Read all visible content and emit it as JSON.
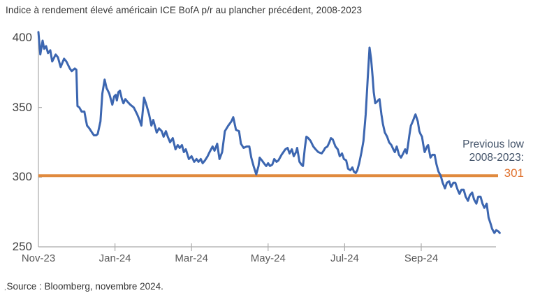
{
  "title": "Indice à rendement élevé américain ICE BofA p/r au plancher précédent, 2008-2023",
  "source": "Source : Bloomberg, novembre 2024.",
  "source_leading_mark": ",",
  "annotation": {
    "line1": "Previous low",
    "line2": "2008-2023:",
    "value": "301"
  },
  "colors": {
    "data_line": "#3C66B0",
    "threshold_line": "#E08A3E",
    "threshold_value_text": "#E0712D",
    "annotation_text": "#44546A",
    "axis": "#ABABAB",
    "y_tick_text": "#3F3F3F",
    "x_tick_text": "#595959"
  },
  "chart_data": {
    "type": "line",
    "title": "Indice à rendement élevé américain ICE BofA p/r au plancher précédent, 2008-2023",
    "xlabel": "",
    "ylabel": "",
    "x_unit": "months since Nov-2023",
    "ylim": [
      250,
      405
    ],
    "y_ticks": [
      400,
      350,
      300,
      250
    ],
    "x_tick_labels": [
      "Nov-23",
      "Jan-24",
      "Mar-24",
      "May-24",
      "Jul-24",
      "Sep-24"
    ],
    "x_tick_positions_months": [
      0,
      2,
      4,
      6,
      8,
      10
    ],
    "grid": false,
    "legend": "none",
    "threshold": {
      "value": 301,
      "label": "Previous low 2008-2023: 301"
    },
    "series": [
      {
        "name": "Indice à rendement élevé américain ICE BofA p/r au plancher précédent",
        "points": [
          [
            0,
            404
          ],
          [
            0.05,
            388
          ],
          [
            0.11,
            398
          ],
          [
            0.15,
            392
          ],
          [
            0.2,
            394
          ],
          [
            0.25,
            389
          ],
          [
            0.31,
            391
          ],
          [
            0.36,
            383
          ],
          [
            0.45,
            388
          ],
          [
            0.51,
            386
          ],
          [
            0.58,
            379
          ],
          [
            0.67,
            385
          ],
          [
            0.73,
            383
          ],
          [
            0.82,
            378
          ],
          [
            0.87,
            376
          ],
          [
            0.95,
            378
          ],
          [
            0.99,
            377
          ],
          [
            1.02,
            351
          ],
          [
            1.07,
            350
          ],
          [
            1.13,
            347
          ],
          [
            1.2,
            347
          ],
          [
            1.24,
            341
          ],
          [
            1.27,
            337
          ],
          [
            1.33,
            335
          ],
          [
            1.4,
            332
          ],
          [
            1.45,
            330
          ],
          [
            1.51,
            330
          ],
          [
            1.55,
            331
          ],
          [
            1.62,
            340
          ],
          [
            1.67,
            360
          ],
          [
            1.73,
            370
          ],
          [
            1.78,
            364
          ],
          [
            1.85,
            360
          ],
          [
            1.89,
            356
          ],
          [
            1.93,
            352
          ],
          [
            1.98,
            358
          ],
          [
            2.02,
            359
          ],
          [
            2.05,
            355
          ],
          [
            2.09,
            361
          ],
          [
            2.13,
            362
          ],
          [
            2.18,
            356
          ],
          [
            2.22,
            353
          ],
          [
            2.27,
            356
          ],
          [
            2.33,
            354
          ],
          [
            2.4,
            352
          ],
          [
            2.49,
            350
          ],
          [
            2.58,
            345
          ],
          [
            2.64,
            341
          ],
          [
            2.69,
            337
          ],
          [
            2.76,
            357
          ],
          [
            2.82,
            352
          ],
          [
            2.89,
            345
          ],
          [
            2.95,
            337
          ],
          [
            3.0,
            341
          ],
          [
            3.09,
            332
          ],
          [
            3.15,
            335
          ],
          [
            3.22,
            333
          ],
          [
            3.27,
            329
          ],
          [
            3.33,
            333
          ],
          [
            3.38,
            329
          ],
          [
            3.44,
            325
          ],
          [
            3.51,
            328
          ],
          [
            3.58,
            320
          ],
          [
            3.64,
            323
          ],
          [
            3.69,
            321
          ],
          [
            3.75,
            323
          ],
          [
            3.8,
            318
          ],
          [
            3.85,
            320
          ],
          [
            3.93,
            313
          ],
          [
            4.0,
            315
          ],
          [
            4.07,
            311
          ],
          [
            4.13,
            313
          ],
          [
            4.18,
            311
          ],
          [
            4.24,
            313
          ],
          [
            4.29,
            310
          ],
          [
            4.35,
            312
          ],
          [
            4.42,
            315
          ],
          [
            4.47,
            318
          ],
          [
            4.55,
            322
          ],
          [
            4.6,
            319
          ],
          [
            4.67,
            324
          ],
          [
            4.73,
            313
          ],
          [
            4.8,
            318
          ],
          [
            4.87,
            333
          ],
          [
            4.96,
            337
          ],
          [
            5.04,
            340
          ],
          [
            5.09,
            343
          ],
          [
            5.16,
            334
          ],
          [
            5.24,
            333
          ],
          [
            5.29,
            324
          ],
          [
            5.36,
            321
          ],
          [
            5.44,
            322
          ],
          [
            5.51,
            322
          ],
          [
            5.56,
            314
          ],
          [
            5.62,
            308
          ],
          [
            5.69,
            302
          ],
          [
            5.75,
            308
          ],
          [
            5.78,
            314
          ],
          [
            5.84,
            312
          ],
          [
            5.89,
            310
          ],
          [
            5.95,
            308
          ],
          [
            6.0,
            310
          ],
          [
            6.05,
            308
          ],
          [
            6.11,
            309
          ],
          [
            6.16,
            313
          ],
          [
            6.22,
            311
          ],
          [
            6.27,
            312
          ],
          [
            6.35,
            316
          ],
          [
            6.4,
            318
          ],
          [
            6.45,
            320
          ],
          [
            6.51,
            321
          ],
          [
            6.56,
            317
          ],
          [
            6.62,
            320
          ],
          [
            6.67,
            315
          ],
          [
            6.73,
            318
          ],
          [
            6.76,
            321
          ],
          [
            6.82,
            311
          ],
          [
            6.87,
            309
          ],
          [
            6.91,
            308
          ],
          [
            6.96,
            321
          ],
          [
            7.0,
            329
          ],
          [
            7.05,
            328
          ],
          [
            7.11,
            326
          ],
          [
            7.18,
            322
          ],
          [
            7.24,
            320
          ],
          [
            7.31,
            318
          ],
          [
            7.4,
            317
          ],
          [
            7.45,
            319
          ],
          [
            7.49,
            321
          ],
          [
            7.55,
            322
          ],
          [
            7.6,
            325
          ],
          [
            7.64,
            328
          ],
          [
            7.69,
            327
          ],
          [
            7.76,
            322
          ],
          [
            7.82,
            320
          ],
          [
            7.87,
            315
          ],
          [
            7.93,
            317
          ],
          [
            7.98,
            313
          ],
          [
            8.04,
            312
          ],
          [
            8.09,
            306
          ],
          [
            8.15,
            305
          ],
          [
            8.2,
            307
          ],
          [
            8.24,
            304
          ],
          [
            8.29,
            303
          ],
          [
            8.33,
            305
          ],
          [
            8.38,
            310
          ],
          [
            8.44,
            318
          ],
          [
            8.49,
            326
          ],
          [
            8.55,
            345
          ],
          [
            8.6,
            370
          ],
          [
            8.65,
            393
          ],
          [
            8.69,
            385
          ],
          [
            8.73,
            372
          ],
          [
            8.76,
            361
          ],
          [
            8.8,
            353
          ],
          [
            8.84,
            354
          ],
          [
            8.87,
            355
          ],
          [
            8.91,
            356
          ],
          [
            8.96,
            345
          ],
          [
            9.0,
            338
          ],
          [
            9.05,
            332
          ],
          [
            9.11,
            329
          ],
          [
            9.16,
            325
          ],
          [
            9.22,
            323
          ],
          [
            9.27,
            320
          ],
          [
            9.31,
            318
          ],
          [
            9.36,
            322
          ],
          [
            9.42,
            316
          ],
          [
            9.47,
            314
          ],
          [
            9.53,
            317
          ],
          [
            9.58,
            320
          ],
          [
            9.62,
            317
          ],
          [
            9.65,
            322
          ],
          [
            9.69,
            330
          ],
          [
            9.73,
            337
          ],
          [
            9.78,
            340
          ],
          [
            9.82,
            343
          ],
          [
            9.85,
            345
          ],
          [
            9.91,
            340
          ],
          [
            9.95,
            333
          ],
          [
            9.98,
            331
          ],
          [
            10.02,
            329
          ],
          [
            10.05,
            324
          ],
          [
            10.09,
            318
          ],
          [
            10.15,
            322
          ],
          [
            10.18,
            323
          ],
          [
            10.24,
            314
          ],
          [
            10.29,
            316
          ],
          [
            10.35,
            316
          ],
          [
            10.4,
            309
          ],
          [
            10.45,
            304
          ],
          [
            10.51,
            301
          ],
          [
            10.56,
            296
          ],
          [
            10.62,
            292
          ],
          [
            10.67,
            296
          ],
          [
            10.73,
            297
          ],
          [
            10.78,
            293
          ],
          [
            10.84,
            296
          ],
          [
            10.89,
            296
          ],
          [
            10.95,
            291
          ],
          [
            11.0,
            288
          ],
          [
            11.05,
            291
          ],
          [
            11.11,
            291
          ],
          [
            11.16,
            286
          ],
          [
            11.22,
            283
          ],
          [
            11.27,
            287
          ],
          [
            11.33,
            289
          ],
          [
            11.38,
            284
          ],
          [
            11.44,
            281
          ],
          [
            11.49,
            286
          ],
          [
            11.55,
            286
          ],
          [
            11.6,
            281
          ],
          [
            11.65,
            278
          ],
          [
            11.71,
            281
          ],
          [
            11.76,
            271
          ],
          [
            11.82,
            266
          ],
          [
            11.85,
            263
          ],
          [
            11.91,
            260
          ],
          [
            11.96,
            262
          ],
          [
            12.02,
            261
          ],
          [
            12.05,
            260
          ]
        ]
      }
    ]
  }
}
